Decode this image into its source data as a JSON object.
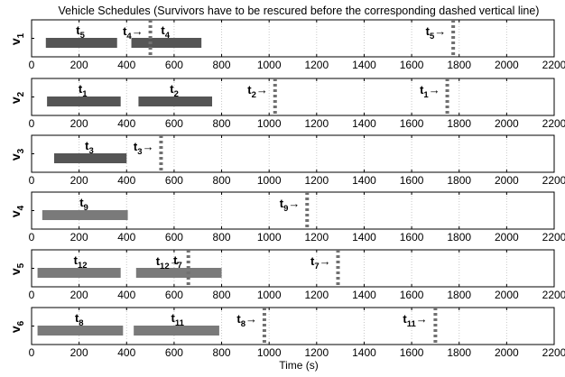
{
  "chart_data": {
    "type": "bar",
    "chart_kind": "gantt-schedule",
    "title": "Vehicle Schedules (Survivors have to be rescured before the corresponding dashed vertical line)",
    "xlabel": "Time (s)",
    "xlim": [
      0,
      2200
    ],
    "xticks": [
      0,
      200,
      400,
      600,
      800,
      1000,
      1200,
      1400,
      1600,
      1800,
      2000,
      2200
    ],
    "grid": "vertical dotted",
    "colors": {
      "bar_dark": "#555555",
      "bar_light": "#7a7a7a",
      "deadline": "#707070",
      "grid": "#c8c8c8"
    },
    "vehicles": [
      {
        "label_main": "v",
        "label_sub": "1",
        "tasks": [
          {
            "main": "t",
            "sub": "5",
            "start": 60,
            "end": 360,
            "shade": "dark"
          },
          {
            "main": "t",
            "sub": "4",
            "start": 420,
            "end": 715,
            "shade": "dark"
          }
        ],
        "deadlines": [
          {
            "main": "t",
            "sub": "4",
            "arrow": "→",
            "x": 500
          },
          {
            "main": "t",
            "sub": "5",
            "arrow": "→",
            "x": 1775
          }
        ]
      },
      {
        "label_main": "v",
        "label_sub": "2",
        "tasks": [
          {
            "main": "t",
            "sub": "1",
            "start": 65,
            "end": 375,
            "shade": "dark"
          },
          {
            "main": "t",
            "sub": "2",
            "start": 450,
            "end": 760,
            "shade": "dark"
          }
        ],
        "deadlines": [
          {
            "main": "t",
            "sub": "2",
            "arrow": "→",
            "x": 1025
          },
          {
            "main": "t",
            "sub": "1",
            "arrow": "→",
            "x": 1750
          }
        ]
      },
      {
        "label_main": "v",
        "label_sub": "3",
        "tasks": [
          {
            "main": "t",
            "sub": "3",
            "start": 95,
            "end": 400,
            "shade": "dark"
          }
        ],
        "deadlines": [
          {
            "main": "t",
            "sub": "3",
            "arrow": "→",
            "x": 545
          }
        ]
      },
      {
        "label_main": "v",
        "label_sub": "4",
        "tasks": [
          {
            "main": "t",
            "sub": "9",
            "start": 45,
            "end": 405,
            "shade": "light"
          }
        ],
        "deadlines": [
          {
            "main": "t",
            "sub": "9",
            "arrow": "→",
            "x": 1160
          }
        ]
      },
      {
        "label_main": "v",
        "label_sub": "5",
        "tasks": [
          {
            "main": "t",
            "sub": "12",
            "start": 25,
            "end": 375,
            "shade": "light"
          },
          {
            "main": "t",
            "sub": "7",
            "start": 440,
            "end": 800,
            "shade": "light"
          }
        ],
        "deadlines": [
          {
            "main": "t",
            "sub": "12",
            "arrow": "→",
            "x": 660
          },
          {
            "main": "t",
            "sub": "7",
            "arrow": "→",
            "x": 1290
          }
        ]
      },
      {
        "label_main": "v",
        "label_sub": "6",
        "tasks": [
          {
            "main": "t",
            "sub": "8",
            "start": 25,
            "end": 385,
            "shade": "light"
          },
          {
            "main": "t",
            "sub": "11",
            "start": 430,
            "end": 790,
            "shade": "light"
          }
        ],
        "deadlines": [
          {
            "main": "t",
            "sub": "8",
            "arrow": "→",
            "x": 980
          },
          {
            "main": "t",
            "sub": "11",
            "arrow": "→",
            "x": 1700
          }
        ]
      }
    ]
  }
}
